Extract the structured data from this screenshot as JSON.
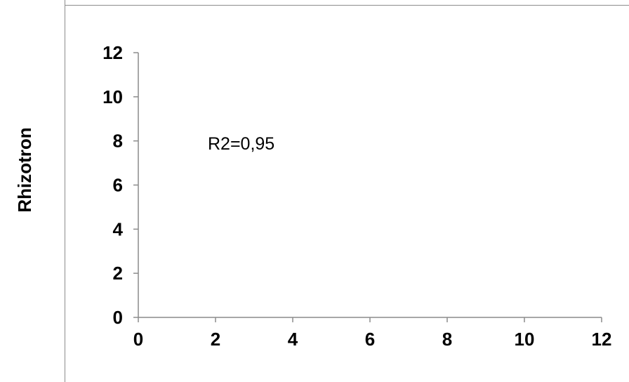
{
  "chart_data": {
    "type": "scatter",
    "title": "",
    "xlabel": "",
    "ylabel": "Rhizotron",
    "xlim": [
      0,
      12
    ],
    "ylim": [
      0,
      12
    ],
    "x_ticks": [
      "0",
      "2",
      "4",
      "6",
      "8",
      "10",
      "12"
    ],
    "y_ticks": [
      "0",
      "2",
      "4",
      "6",
      "8",
      "10",
      "12"
    ],
    "series": [],
    "annotations": [
      {
        "text": "R2=0,95",
        "x": 1.8,
        "y": 7.6
      }
    ],
    "grid": false,
    "colors": {
      "axis": "#8c8c8c",
      "frame": "#8c8c8c",
      "text": "#000000"
    }
  }
}
